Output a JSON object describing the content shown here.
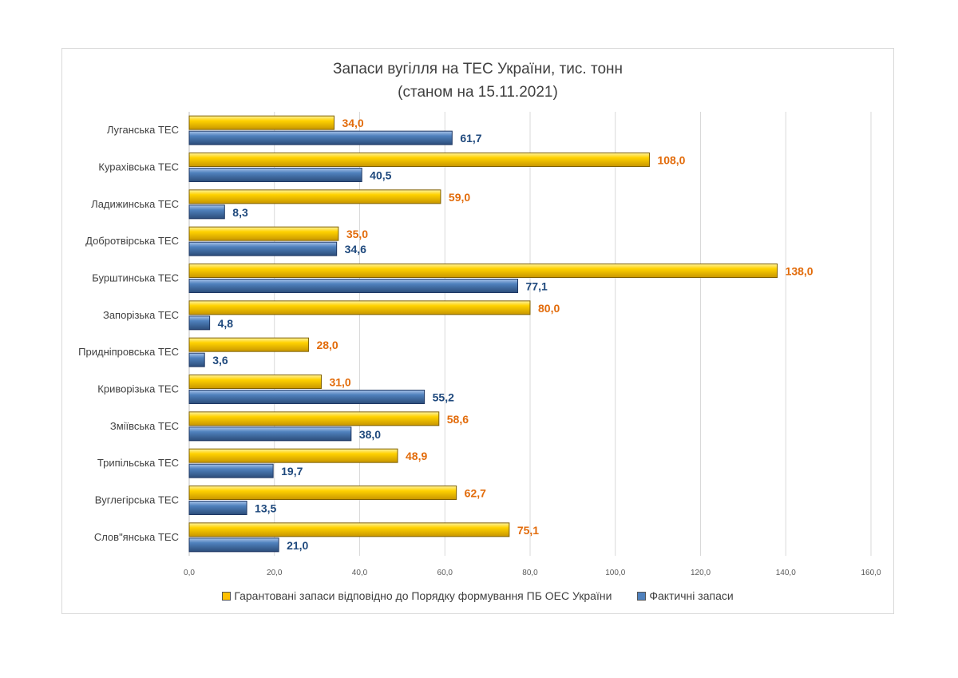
{
  "chart_data": {
    "type": "bar",
    "orientation": "horizontal",
    "title": "Запаси вугілля на ТЕС України, тис. тонн",
    "subtitle": "(станом на 15.11.2021)",
    "categories": [
      "Луганська ТЕС",
      "Курахівська ТЕС",
      "Ладижинська ТЕС",
      "Добротвірська ТЕС",
      "Бурштинська ТЕС",
      "Запорізька ТЕС",
      "Придніпровська ТЕС",
      "Криворізька ТЕС",
      "Зміївська ТЕС",
      "Трипільська ТЕС",
      "Вуглегірська ТЕС",
      "Слов\"янська ТЕС"
    ],
    "series": [
      {
        "name": "Гарантовані запаси відповідно до Порядку формування ПБ ОЕС України",
        "color": "#FFC000",
        "label_color": "#E26B0A",
        "values": [
          34.0,
          108.0,
          59.0,
          35.0,
          138.0,
          80.0,
          28.0,
          31.0,
          58.6,
          48.9,
          62.7,
          75.1
        ],
        "labels": [
          "34,0",
          "108,0",
          "59,0",
          "35,0",
          "138,0",
          "80,0",
          "28,0",
          "31,0",
          "58,6",
          "48,9",
          "62,7",
          "75,1"
        ]
      },
      {
        "name": "Фактичні запаси",
        "color": "#4F81BD",
        "label_color": "#1F497D",
        "values": [
          61.7,
          40.5,
          8.3,
          34.6,
          77.1,
          4.8,
          3.6,
          55.2,
          38.0,
          19.7,
          13.5,
          21.0
        ],
        "labels": [
          "61,7",
          "40,5",
          "8,3",
          "34,6",
          "77,1",
          "4,8",
          "3,6",
          "55,2",
          "38,0",
          "19,7",
          "13,5",
          "21,0"
        ]
      }
    ],
    "xlim": [
      0,
      160
    ],
    "xticks": [
      0,
      20,
      40,
      60,
      80,
      100,
      120,
      140,
      160
    ],
    "xtick_labels": [
      "0,0",
      "20,0",
      "40,0",
      "60,0",
      "80,0",
      "100,0",
      "120,0",
      "140,0",
      "160,0"
    ],
    "grid": true,
    "legend_placement": "bottom"
  }
}
